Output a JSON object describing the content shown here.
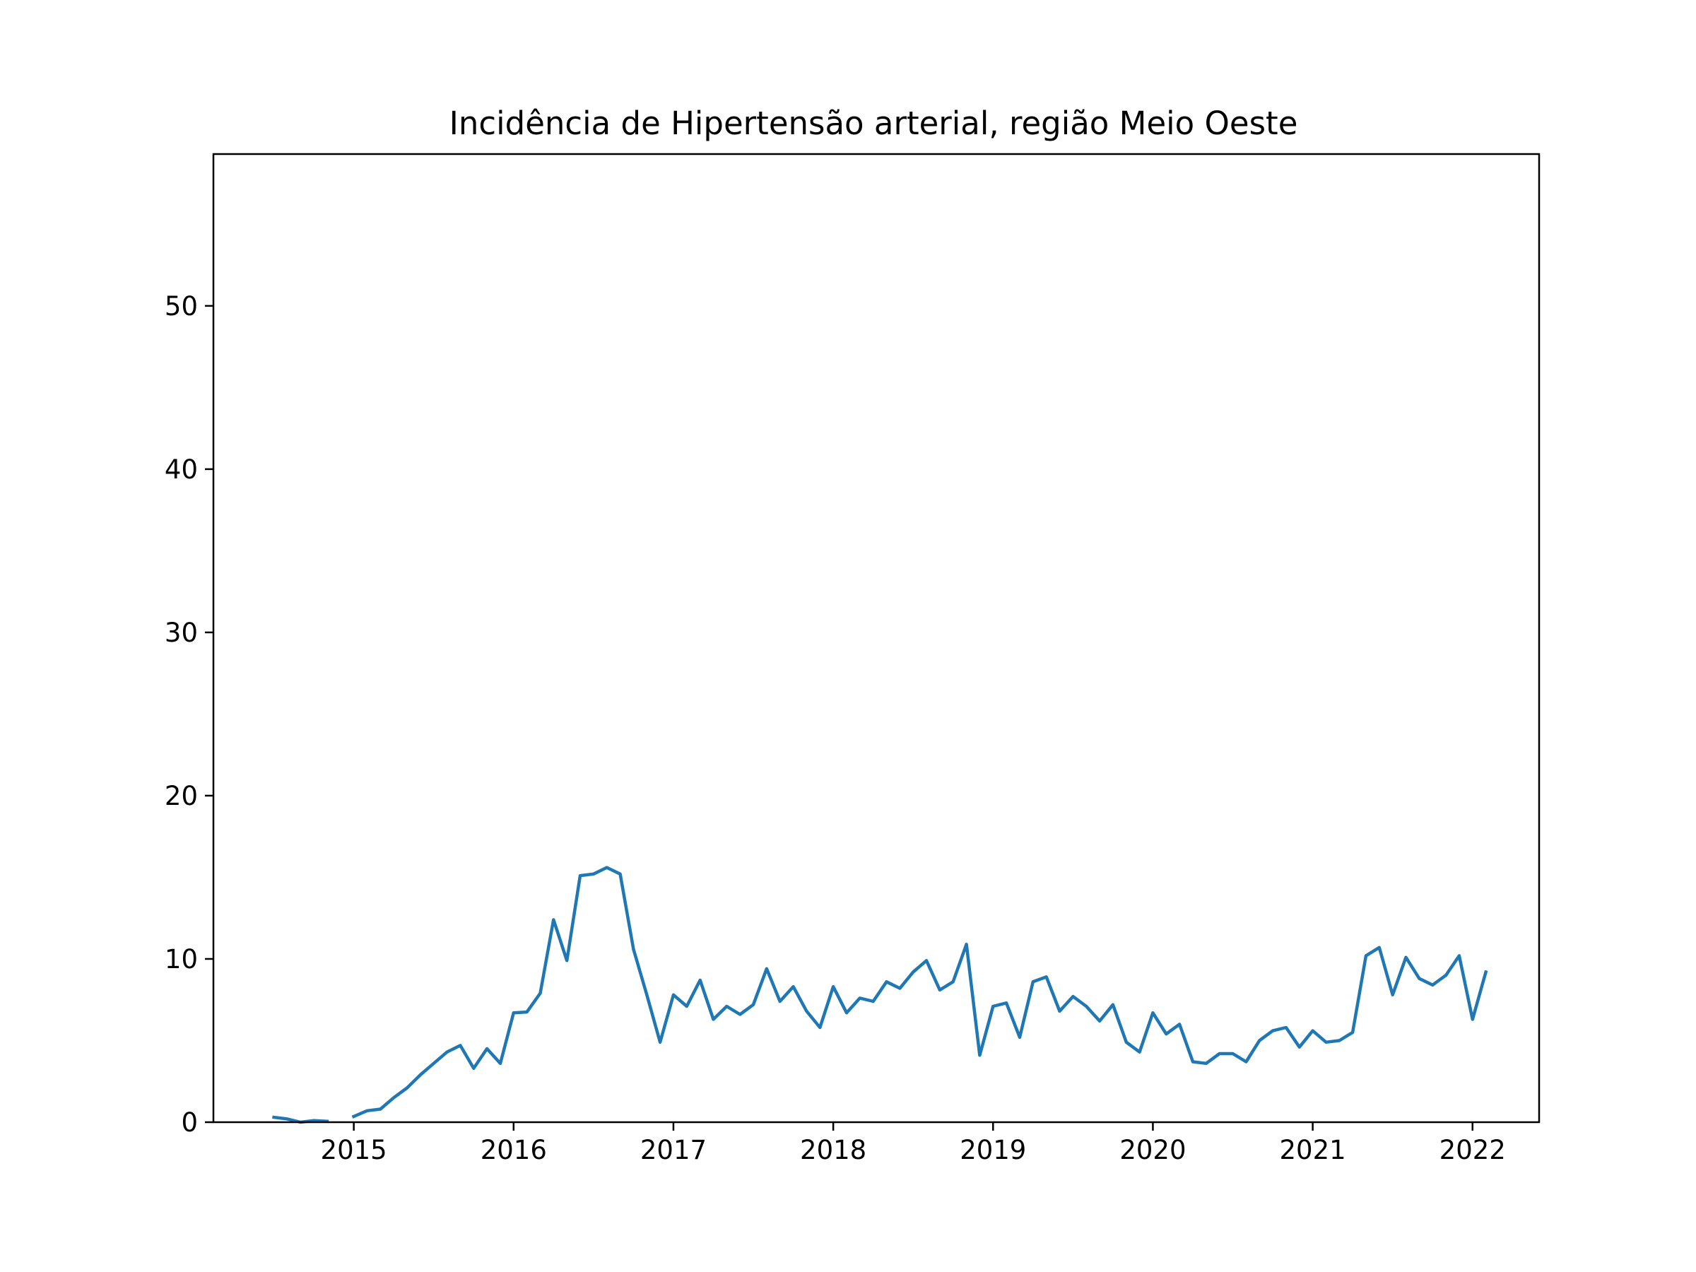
{
  "chart_data": {
    "type": "line",
    "title": "Incidência de Hipertensão arterial, região Meio Oeste",
    "xlabel": "",
    "ylabel": "",
    "xlim": [
      "2014-02-15",
      "2022-06-01"
    ],
    "ylim": [
      0,
      59.3
    ],
    "x_ticks": [
      "2015",
      "2016",
      "2017",
      "2018",
      "2019",
      "2020",
      "2021",
      "2022"
    ],
    "y_ticks": [
      0,
      10,
      20,
      30,
      40,
      50
    ],
    "grid": false,
    "legend": "none",
    "line_color": "#1f77b4",
    "series": [
      {
        "points": [
          [
            "2014-07-01",
            0.3
          ],
          [
            "2014-08-01",
            0.2
          ],
          [
            "2014-09-01",
            0.0
          ],
          [
            "2014-10-01",
            0.1
          ],
          [
            "2014-11-01",
            0.05
          ],
          [
            "2014-12-01",
            null
          ],
          [
            "2015-01-01",
            0.35
          ],
          [
            "2015-02-01",
            0.7
          ],
          [
            "2015-03-01",
            0.8
          ],
          [
            "2015-04-01",
            1.5
          ],
          [
            "2015-05-01",
            2.1
          ],
          [
            "2015-06-01",
            2.9
          ],
          [
            "2015-07-01",
            3.6
          ],
          [
            "2015-08-01",
            4.3
          ],
          [
            "2015-09-01",
            4.7
          ],
          [
            "2015-10-01",
            3.3
          ],
          [
            "2015-11-01",
            4.5
          ],
          [
            "2015-12-01",
            3.6
          ],
          [
            "2016-01-01",
            6.7
          ],
          [
            "2016-02-01",
            6.75
          ],
          [
            "2016-03-01",
            7.9
          ],
          [
            "2016-04-01",
            12.4
          ],
          [
            "2016-05-01",
            9.9
          ],
          [
            "2016-06-01",
            15.1
          ],
          [
            "2016-07-01",
            15.2
          ],
          [
            "2016-08-01",
            15.6
          ],
          [
            "2016-09-01",
            15.2
          ],
          [
            "2016-10-01",
            10.6
          ],
          [
            "2016-11-01",
            7.8
          ],
          [
            "2016-12-01",
            4.9
          ],
          [
            "2017-01-01",
            7.8
          ],
          [
            "2017-02-01",
            7.1
          ],
          [
            "2017-03-01",
            8.7
          ],
          [
            "2017-04-01",
            6.3
          ],
          [
            "2017-05-01",
            7.1
          ],
          [
            "2017-06-01",
            6.6
          ],
          [
            "2017-07-01",
            7.2
          ],
          [
            "2017-08-01",
            9.4
          ],
          [
            "2017-09-01",
            7.4
          ],
          [
            "2017-10-01",
            8.3
          ],
          [
            "2017-11-01",
            6.8
          ],
          [
            "2017-12-01",
            5.8
          ],
          [
            "2018-01-01",
            8.3
          ],
          [
            "2018-02-01",
            6.7
          ],
          [
            "2018-03-01",
            7.6
          ],
          [
            "2018-04-01",
            7.4
          ],
          [
            "2018-05-01",
            8.6
          ],
          [
            "2018-06-01",
            8.2
          ],
          [
            "2018-07-01",
            9.2
          ],
          [
            "2018-08-01",
            9.9
          ],
          [
            "2018-09-01",
            8.1
          ],
          [
            "2018-10-01",
            8.6
          ],
          [
            "2018-11-01",
            10.9
          ],
          [
            "2018-12-01",
            4.1
          ],
          [
            "2019-01-01",
            7.1
          ],
          [
            "2019-02-01",
            7.3
          ],
          [
            "2019-03-01",
            5.2
          ],
          [
            "2019-04-01",
            8.6
          ],
          [
            "2019-05-01",
            8.9
          ],
          [
            "2019-06-01",
            6.8
          ],
          [
            "2019-07-01",
            7.7
          ],
          [
            "2019-08-01",
            7.1
          ],
          [
            "2019-09-01",
            6.2
          ],
          [
            "2019-10-01",
            7.2
          ],
          [
            "2019-11-01",
            4.9
          ],
          [
            "2019-12-01",
            4.3
          ],
          [
            "2020-01-01",
            6.7
          ],
          [
            "2020-02-01",
            5.4
          ],
          [
            "2020-03-01",
            6.0
          ],
          [
            "2020-04-01",
            3.7
          ],
          [
            "2020-05-01",
            3.6
          ],
          [
            "2020-06-01",
            4.2
          ],
          [
            "2020-07-01",
            4.2
          ],
          [
            "2020-08-01",
            3.7
          ],
          [
            "2020-09-01",
            5.0
          ],
          [
            "2020-10-01",
            5.6
          ],
          [
            "2020-11-01",
            5.8
          ],
          [
            "2020-12-01",
            4.6
          ],
          [
            "2021-01-01",
            5.6
          ],
          [
            "2021-02-01",
            4.9
          ],
          [
            "2021-03-01",
            5.0
          ],
          [
            "2021-04-01",
            5.5
          ],
          [
            "2021-05-01",
            10.2
          ],
          [
            "2021-06-01",
            10.7
          ],
          [
            "2021-07-01",
            7.8
          ],
          [
            "2021-08-01",
            10.1
          ],
          [
            "2021-09-01",
            8.8
          ],
          [
            "2021-10-01",
            8.4
          ],
          [
            "2021-11-01",
            9.0
          ],
          [
            "2021-12-01",
            10.2
          ],
          [
            "2022-01-01",
            6.3
          ],
          [
            "2022-02-01",
            9.2
          ]
        ]
      }
    ]
  }
}
